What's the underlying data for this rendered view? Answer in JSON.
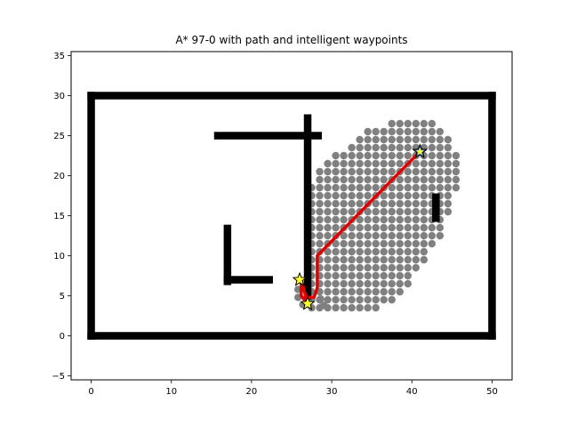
{
  "chart_data": {
    "type": "scatter",
    "title": "A* 97-0 with path and intelligent waypoints",
    "xlabel": "",
    "ylabel": "",
    "xlim": [
      -2.5,
      52.5
    ],
    "ylim": [
      -5.5,
      35.5
    ],
    "x_ticks": [
      0,
      10,
      20,
      30,
      40,
      50
    ],
    "y_ticks": [
      -5,
      0,
      5,
      10,
      15,
      20,
      25,
      30,
      35
    ],
    "grid": false,
    "colors": {
      "obstacle": "#000000",
      "explored": "#808080",
      "path": "#e00000",
      "waypoint_fill": "#ffff33",
      "start_goal_fill": "#4a6fd0"
    },
    "obstacle_segments": [
      {
        "x": [
          0,
          50
        ],
        "y": [
          0,
          0
        ]
      },
      {
        "x": [
          0,
          50
        ],
        "y": [
          30,
          30
        ]
      },
      {
        "x": [
          0,
          0
        ],
        "y": [
          0,
          30
        ]
      },
      {
        "x": [
          50,
          50
        ],
        "y": [
          0,
          30
        ]
      },
      {
        "x": [
          15.8,
          28.3
        ],
        "y": [
          25,
          25
        ]
      },
      {
        "x": [
          27,
          27
        ],
        "y": [
          5,
          27.2
        ]
      },
      {
        "x": [
          17,
          17
        ],
        "y": [
          6.8,
          13.4
        ]
      },
      {
        "x": [
          17,
          22.2
        ],
        "y": [
          7,
          7
        ]
      },
      {
        "x": [
          43,
          43
        ],
        "y": [
          14.7,
          17.3
        ]
      }
    ],
    "explored_extent": {
      "x_range": [
        25.5,
        45.5
      ],
      "y_range": [
        3.5,
        26.5
      ],
      "shape": "tilted ellipse from (27,4) to (41,23)"
    },
    "path": {
      "x": [
        27,
        26.2,
        26.2,
        26.8,
        27.8,
        28.2,
        28.2,
        41
      ],
      "y": [
        4,
        5,
        7,
        4.8,
        4.8,
        6,
        10,
        23
      ]
    },
    "waypoints": [
      {
        "x": 26,
        "y": 7,
        "role": "waypoint"
      },
      {
        "x": 27,
        "y": 4,
        "role": "start"
      },
      {
        "x": 41,
        "y": 23,
        "role": "goal"
      }
    ]
  }
}
